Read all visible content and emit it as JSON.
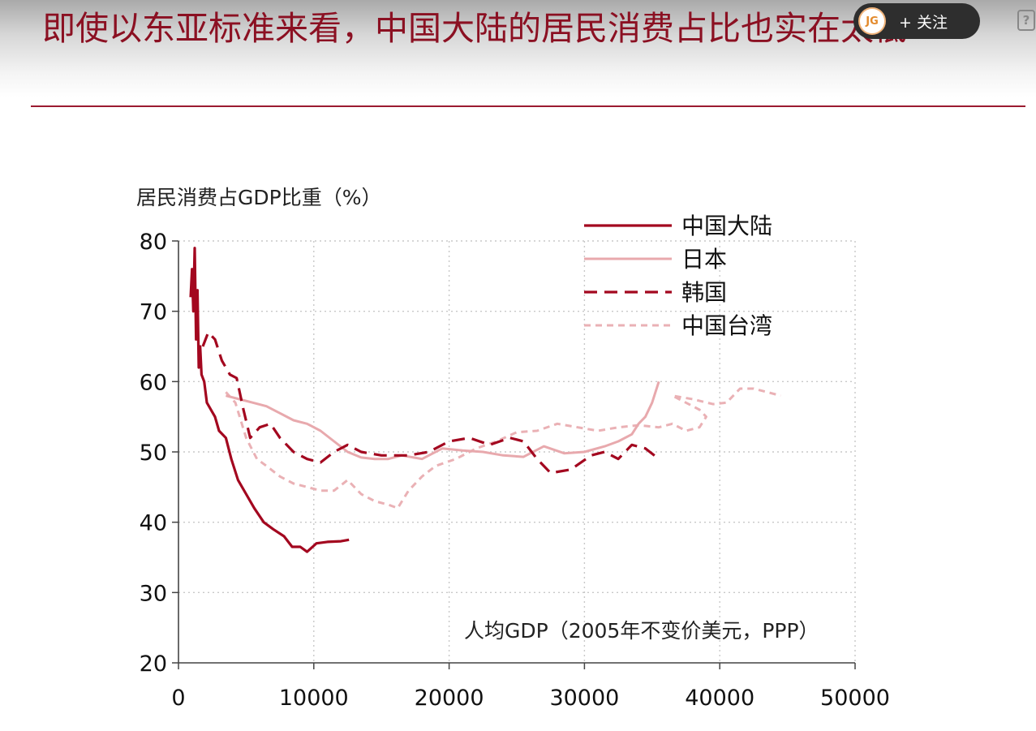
{
  "slide": {
    "title": "即使以东亚标准来看，中国大陆的居民消费占比也实在太低"
  },
  "follow_widget": {
    "avatar_text": "JG",
    "label": "+ 关注"
  },
  "help_icon": {
    "glyph": "?"
  },
  "colors": {
    "title": "#8b1022",
    "china_mainland": "#a3071f",
    "japan": "#e8a9ad",
    "korea": "#a3071f",
    "taiwan": "#eab1b5",
    "grid": "#c8c8c8",
    "rule": "#9b1b30"
  },
  "chart_data": {
    "type": "line",
    "ylabel": "居民消费占GDP比重（%）",
    "xlabel": "人均GDP（2005年不变价美元，PPP）",
    "xlim": [
      0,
      50000
    ],
    "ylim": [
      20,
      80
    ],
    "x_ticks": [
      "0",
      "10000",
      "20000",
      "30000",
      "40000",
      "50000"
    ],
    "y_ticks": [
      "20",
      "30",
      "40",
      "50",
      "60",
      "70",
      "80"
    ],
    "grid": true,
    "legend_position": "top-right",
    "series": [
      {
        "name": "中国大陆",
        "style": "solid",
        "points": [
          [
            900,
            72
          ],
          [
            1000,
            76
          ],
          [
            1100,
            70
          ],
          [
            1200,
            79
          ],
          [
            1300,
            66
          ],
          [
            1400,
            73
          ],
          [
            1500,
            62
          ],
          [
            1600,
            65
          ],
          [
            1700,
            61
          ],
          [
            1900,
            60
          ],
          [
            2100,
            57
          ],
          [
            2400,
            56
          ],
          [
            2700,
            55
          ],
          [
            3000,
            53
          ],
          [
            3500,
            52
          ],
          [
            3900,
            49
          ],
          [
            4400,
            46
          ],
          [
            5000,
            44
          ],
          [
            5600,
            42
          ],
          [
            6300,
            40
          ],
          [
            7000,
            39
          ],
          [
            7800,
            38
          ],
          [
            8400,
            36.5
          ],
          [
            9000,
            36.5
          ],
          [
            9500,
            35.8
          ],
          [
            10200,
            37
          ],
          [
            11000,
            37.2
          ],
          [
            12000,
            37.3
          ],
          [
            12600,
            37.5
          ]
        ]
      },
      {
        "name": "日本",
        "style": "solid",
        "points": [
          [
            3500,
            58
          ],
          [
            4500,
            57.5
          ],
          [
            5500,
            57
          ],
          [
            6500,
            56.5
          ],
          [
            7500,
            55.5
          ],
          [
            8500,
            54.5
          ],
          [
            9500,
            54
          ],
          [
            10500,
            53
          ],
          [
            11500,
            51.5
          ],
          [
            12500,
            50
          ],
          [
            13500,
            49.2
          ],
          [
            14500,
            49
          ],
          [
            15500,
            49
          ],
          [
            16500,
            49.5
          ],
          [
            18000,
            49
          ],
          [
            19500,
            50.5
          ],
          [
            21000,
            50.2
          ],
          [
            22500,
            50
          ],
          [
            24000,
            49.5
          ],
          [
            25500,
            49.3
          ],
          [
            27000,
            50.8
          ],
          [
            28500,
            49.8
          ],
          [
            30000,
            50
          ],
          [
            31500,
            50.8
          ],
          [
            32500,
            51.5
          ],
          [
            33500,
            52.5
          ],
          [
            34000,
            54
          ],
          [
            34500,
            55
          ],
          [
            35000,
            57
          ],
          [
            35500,
            60
          ]
        ]
      },
      {
        "name": "韩国",
        "style": "dash",
        "points": [
          [
            1800,
            65
          ],
          [
            2200,
            67
          ],
          [
            2700,
            66
          ],
          [
            3200,
            63
          ],
          [
            3800,
            61
          ],
          [
            4300,
            60.5
          ],
          [
            4800,
            56
          ],
          [
            5300,
            52
          ],
          [
            6000,
            53.5
          ],
          [
            6800,
            54
          ],
          [
            7500,
            52
          ],
          [
            8500,
            50
          ],
          [
            9500,
            49
          ],
          [
            10500,
            48.5
          ],
          [
            11500,
            50
          ],
          [
            12500,
            51
          ],
          [
            13500,
            50
          ],
          [
            15000,
            49.5
          ],
          [
            17000,
            49.5
          ],
          [
            18500,
            50
          ],
          [
            20000,
            51.5
          ],
          [
            21500,
            52
          ],
          [
            23000,
            51
          ],
          [
            24500,
            52
          ],
          [
            25500,
            51.5
          ],
          [
            26500,
            49
          ],
          [
            27500,
            47
          ],
          [
            29000,
            47.5
          ],
          [
            30500,
            49.5
          ],
          [
            31500,
            50
          ],
          [
            32500,
            49
          ],
          [
            33500,
            51
          ],
          [
            34500,
            50.5
          ],
          [
            35500,
            49
          ]
        ]
      },
      {
        "name": "中国台湾",
        "style": "short-dash",
        "points": [
          [
            3500,
            58.5
          ],
          [
            4200,
            57
          ],
          [
            5000,
            52
          ],
          [
            5800,
            49
          ],
          [
            6500,
            48
          ],
          [
            7500,
            46.5
          ],
          [
            8500,
            45.5
          ],
          [
            9500,
            45
          ],
          [
            10500,
            44.5
          ],
          [
            11500,
            44.5
          ],
          [
            12500,
            46
          ],
          [
            13500,
            44
          ],
          [
            14500,
            43
          ],
          [
            15500,
            42.5
          ],
          [
            16200,
            42
          ],
          [
            17000,
            44.5
          ],
          [
            18000,
            46.5
          ],
          [
            19000,
            48
          ],
          [
            20500,
            49
          ],
          [
            22000,
            50.5
          ],
          [
            23500,
            51.5
          ],
          [
            25000,
            52.8
          ],
          [
            26500,
            53
          ],
          [
            28000,
            54
          ],
          [
            29500,
            53.5
          ],
          [
            31000,
            53
          ],
          [
            32500,
            53.5
          ],
          [
            34000,
            53.8
          ],
          [
            35500,
            53.5
          ],
          [
            36500,
            54
          ],
          [
            37500,
            53
          ],
          [
            38500,
            53.5
          ],
          [
            39000,
            55
          ],
          [
            38500,
            56
          ],
          [
            37500,
            57
          ],
          [
            36500,
            58
          ],
          [
            38000,
            57.5
          ],
          [
            39500,
            56.8
          ],
          [
            40500,
            57
          ],
          [
            41500,
            59
          ],
          [
            42500,
            59
          ],
          [
            43500,
            58.5
          ],
          [
            44500,
            58
          ]
        ]
      }
    ]
  }
}
